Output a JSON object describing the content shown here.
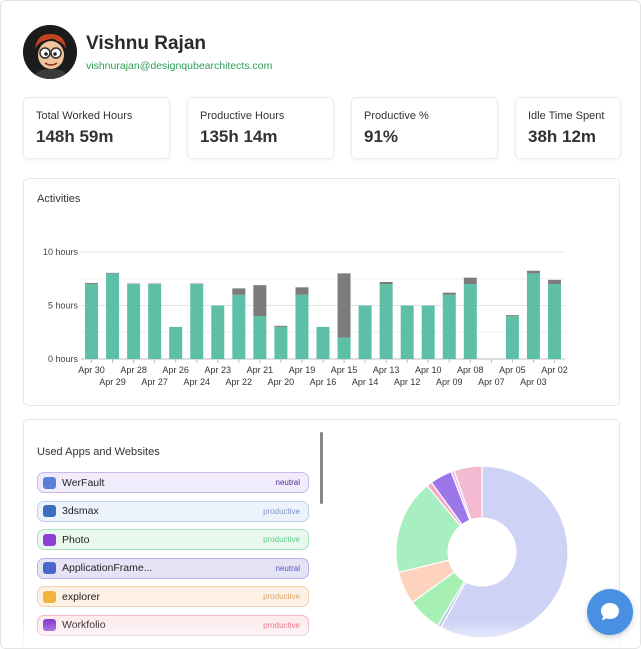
{
  "profile": {
    "name": "Vishnu Rajan",
    "email": "vishnurajan@designqubearchitects.com"
  },
  "stats": [
    {
      "label": "Total Worked Hours",
      "value": "148h 59m"
    },
    {
      "label": "Productive Hours",
      "value": "135h 14m"
    },
    {
      "label": "Productive %",
      "value": "91%"
    },
    {
      "label": "Idle Time Spent",
      "value": "38h 12m"
    }
  ],
  "activities": {
    "title": "Activities"
  },
  "chart_data": {
    "type": "bar",
    "stacked": true,
    "y_tick_labels": [
      "10 hours",
      "5 hours",
      "0 hours"
    ],
    "y_ticks": [
      10,
      5,
      0
    ],
    "ylim": [
      0,
      10
    ],
    "categories": [
      "Apr 30",
      "Apr 29",
      "Apr 28",
      "Apr 27",
      "Apr 26",
      "Apr 24",
      "Apr 23",
      "Apr 22",
      "Apr 21",
      "Apr 20",
      "Apr 19",
      "Apr 16",
      "Apr 15",
      "Apr 14",
      "Apr 13",
      "Apr 12",
      "Apr 10",
      "Apr 09",
      "Apr 08",
      "Apr 07",
      "Apr 05",
      "Apr 03",
      "Apr 02"
    ],
    "series": [
      {
        "values": [
          7,
          8,
          7,
          7,
          3,
          7,
          5,
          6,
          4,
          3,
          6,
          3,
          2,
          5,
          7,
          5,
          5,
          6,
          7,
          0,
          4,
          8,
          7
        ]
      },
      {
        "values": [
          0.1,
          0.05,
          0.05,
          0.05,
          0,
          0.05,
          0,
          0.6,
          2.9,
          0.1,
          0.7,
          0,
          6,
          0,
          0.2,
          0,
          0,
          0.2,
          0.6,
          0,
          0.1,
          0.25,
          0.4
        ]
      }
    ],
    "colors": {
      "productive": "#5dbfa6",
      "idle": "#7c7c7c"
    },
    "grid": true
  },
  "apps": {
    "title": "Used Apps and Websites",
    "items": [
      {
        "name": "WerFault",
        "tag": "neutral",
        "bg": "#f1ecfb",
        "border": "#c9b9ee",
        "tagColor": "#4a2e8c",
        "icon": "werfault-icon",
        "iconColor": "#5a7fd6"
      },
      {
        "name": "3dsmax",
        "tag": "productive",
        "bg": "#edf3fc",
        "border": "#b9cff0",
        "tagColor": "#7d96c8",
        "icon": "3dsmax-icon",
        "iconColor": "#3a6ec0"
      },
      {
        "name": "Photo",
        "tag": "productive",
        "bg": "#e9f8ee",
        "border": "#a9e6bd",
        "tagColor": "#5fcf86",
        "icon": "photo-icon",
        "iconColor": "#8d3fd6"
      },
      {
        "name": "ApplicationFrame...",
        "tag": "neutral",
        "bg": "#e5e4f7",
        "border": "#b7b3ea",
        "tagColor": "#5a55b5",
        "icon": "application-frame-icon",
        "iconColor": "#4a67c9"
      },
      {
        "name": "explorer",
        "tag": "productive",
        "bg": "#fdf1e6",
        "border": "#f4d0ad",
        "tagColor": "#e0a46a",
        "icon": "folder-icon",
        "iconColor": "#f0b43a"
      },
      {
        "name": "Workfolio",
        "tag": "productive",
        "bg": "#fcecee",
        "border": "#f0b8c0",
        "tagColor": "#e06a7a",
        "icon": "workfolio-icon",
        "iconColor": "#8a3fd0"
      }
    ]
  },
  "donut_data": {
    "type": "pie",
    "values": [
      58.5,
      0.7,
      6.5,
      6.2,
      18.0,
      1.0,
      4.2,
      0.6,
      5.3
    ],
    "colors": [
      "#ced3f6",
      "#b9c7e8",
      "#a6f0b4",
      "#fdd3bd",
      "#a7eec0",
      "#f6a7c5",
      "#9b77ea",
      "#e7b9f2",
      "#f4bad2"
    ]
  },
  "chat": {
    "icon": "chat-bubble-icon"
  }
}
